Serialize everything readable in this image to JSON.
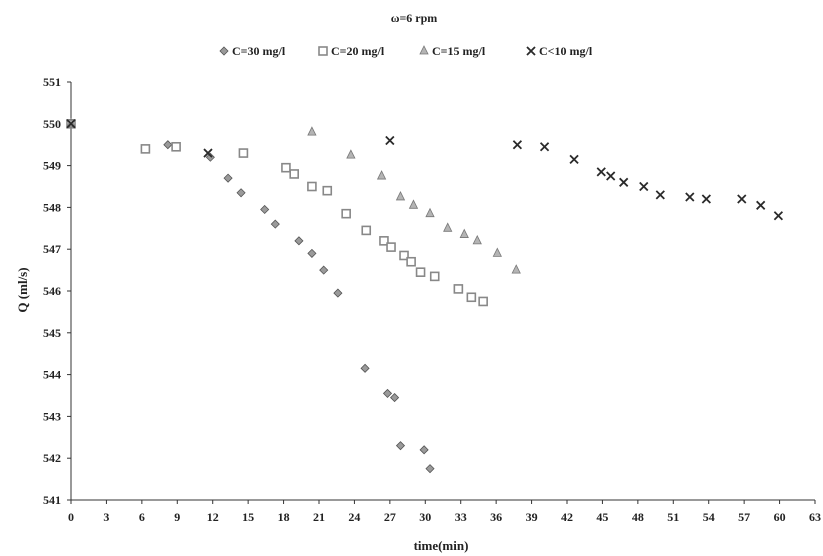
{
  "chart_data": {
    "type": "scatter",
    "title": "ω=6 rpm",
    "xlabel": "time(min)",
    "ylabel": "Q (ml/s)",
    "xlim": [
      0,
      63
    ],
    "ylim": [
      541,
      551
    ],
    "xticks": [
      0,
      3,
      6,
      9,
      12,
      15,
      18,
      21,
      24,
      27,
      30,
      33,
      36,
      39,
      42,
      45,
      48,
      51,
      54,
      57,
      60,
      63
    ],
    "yticks": [
      541,
      542,
      543,
      544,
      545,
      546,
      547,
      548,
      549,
      550,
      551
    ],
    "grid": false,
    "legend_position": "top",
    "series": [
      {
        "name": "C=30 mg/l",
        "marker": "diamond",
        "color": "#9a9a9a",
        "points": [
          [
            0,
            550.0
          ],
          [
            8.2,
            549.5
          ],
          [
            11.8,
            549.2
          ],
          [
            13.3,
            548.7
          ],
          [
            14.4,
            548.35
          ],
          [
            16.4,
            547.95
          ],
          [
            17.3,
            547.6
          ],
          [
            19.3,
            547.2
          ],
          [
            20.4,
            546.9
          ],
          [
            21.4,
            546.5
          ],
          [
            22.6,
            545.95
          ],
          [
            24.9,
            544.15
          ],
          [
            26.8,
            543.55
          ],
          [
            27.4,
            543.45
          ],
          [
            27.9,
            542.3
          ],
          [
            29.9,
            542.2
          ],
          [
            30.4,
            541.75
          ]
        ]
      },
      {
        "name": "C=20 mg/l",
        "marker": "square",
        "color": "#b4b4b4",
        "points": [
          [
            0,
            550.0
          ],
          [
            6.3,
            549.4
          ],
          [
            8.9,
            549.45
          ],
          [
            14.6,
            549.3
          ],
          [
            18.2,
            548.95
          ],
          [
            18.9,
            548.8
          ],
          [
            20.4,
            548.5
          ],
          [
            21.7,
            548.4
          ],
          [
            23.3,
            547.85
          ],
          [
            25.0,
            547.45
          ],
          [
            26.5,
            547.2
          ],
          [
            27.1,
            547.05
          ],
          [
            28.2,
            546.85
          ],
          [
            28.8,
            546.7
          ],
          [
            29.6,
            546.45
          ],
          [
            30.8,
            546.35
          ],
          [
            32.8,
            546.05
          ],
          [
            33.9,
            545.85
          ],
          [
            34.9,
            545.75
          ]
        ]
      },
      {
        "name": "C=15 mg/l",
        "marker": "triangle",
        "color": "#b4b4b4",
        "points": [
          [
            0,
            550.0
          ],
          [
            20.4,
            549.8
          ],
          [
            23.7,
            549.25
          ],
          [
            26.3,
            548.75
          ],
          [
            27.9,
            548.25
          ],
          [
            29.0,
            548.05
          ],
          [
            30.4,
            547.85
          ],
          [
            31.9,
            547.5
          ],
          [
            33.3,
            547.35
          ],
          [
            34.4,
            547.2
          ],
          [
            36.1,
            546.9
          ],
          [
            37.7,
            546.5
          ]
        ]
      },
      {
        "name": "C<10 mg/l",
        "marker": "x",
        "color": "#2a2a2a",
        "points": [
          [
            0,
            550.0
          ],
          [
            11.6,
            549.3
          ],
          [
            27.0,
            549.6
          ],
          [
            37.8,
            549.5
          ],
          [
            40.1,
            549.45
          ],
          [
            42.6,
            549.15
          ],
          [
            44.9,
            548.85
          ],
          [
            45.7,
            548.75
          ],
          [
            46.8,
            548.6
          ],
          [
            48.5,
            548.5
          ],
          [
            49.9,
            548.3
          ],
          [
            52.4,
            548.25
          ],
          [
            53.8,
            548.2
          ],
          [
            56.8,
            548.2
          ],
          [
            58.4,
            548.05
          ],
          [
            59.9,
            547.8
          ]
        ]
      }
    ]
  }
}
